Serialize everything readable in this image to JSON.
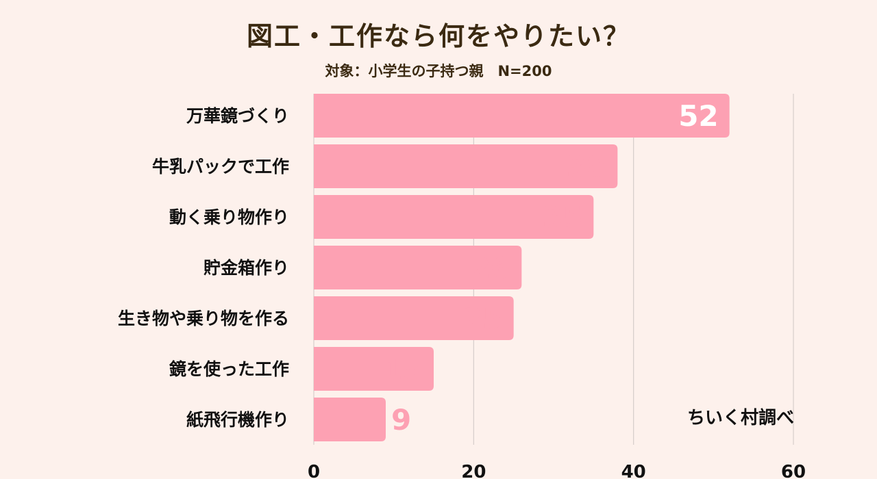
{
  "chart_data": {
    "type": "bar",
    "orientation": "horizontal",
    "title": "図工・工作なら何をやりたい？",
    "subtitle": "対象：小学生の子持つ親　N=200",
    "categories": [
      "万華鏡づくり",
      "牛乳パックで工作",
      "動く乗り物作り",
      "貯金箱作り",
      "生き物や乗り物を作る",
      "鏡を使った工作",
      "紙飛行機作り"
    ],
    "values": [
      52,
      38,
      35,
      26,
      25,
      15,
      9
    ],
    "xlim": [
      0,
      60
    ],
    "xticks": [
      0,
      20,
      40,
      60
    ],
    "grid": true,
    "colors": {
      "bar": "#fda1b3",
      "label": "#fda1b3",
      "label_inside": "#ffffff",
      "grid": "#d6cdca",
      "text": "#111111"
    }
  },
  "credit": "ちいく村調べ"
}
